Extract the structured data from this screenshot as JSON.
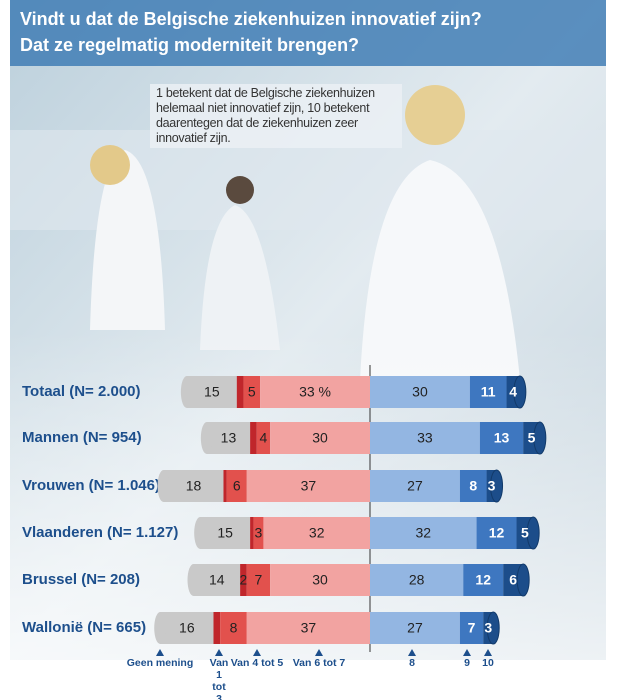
{
  "chart_data": {
    "type": "diverging_bar",
    "title": "Vindt u dat de Belgische ziekenhuizen innovatief zijn?",
    "subtitle": "Dat ze regelmatig moderniteit brengen?",
    "note": "1 betekent dat de Belgische ziekenhuizen helemaal niet innovatief zijn, 10 betekent daarentegen dat de ziekenhuizen zeer innovatief zijn.",
    "categories": [
      "Totaal (N= 2.000)",
      "Mannen (N= 954)",
      "Vrouwen (N= 1.046)",
      "Vlaanderen (N= 1.127)",
      "Brussel (N= 208)",
      "Wallonië (N= 665)"
    ],
    "series": [
      {
        "name": "Geen mening",
        "color": "#c9c9c9",
        "values": [
          15,
          13,
          18,
          15,
          14,
          16
        ]
      },
      {
        "name": "Van 1 tot 3",
        "color": "#c0262b",
        "values": [
          2,
          2,
          1,
          1,
          2,
          2
        ],
        "value_labels": [
          null,
          null,
          null,
          null,
          "2",
          null
        ]
      },
      {
        "name": "Van 4 tot 5",
        "color": "#e2514d",
        "values": [
          5,
          4,
          6,
          3,
          7,
          8
        ]
      },
      {
        "name": "Van 6 tot 7",
        "color": "#f2a3a1",
        "values": [
          33,
          30,
          37,
          32,
          30,
          37
        ],
        "value_labels": [
          "33 %",
          "30",
          "37",
          "32",
          "30",
          "37"
        ]
      },
      {
        "name": "8",
        "color": "#93b6e2",
        "values": [
          30,
          33,
          27,
          32,
          28,
          27
        ]
      },
      {
        "name": "9",
        "color": "#3e77c0",
        "values": [
          11,
          13,
          8,
          12,
          12,
          7
        ]
      },
      {
        "name": "10",
        "color": "#1c4d8a",
        "values": [
          4,
          5,
          3,
          5,
          6,
          3
        ]
      }
    ]
  }
}
